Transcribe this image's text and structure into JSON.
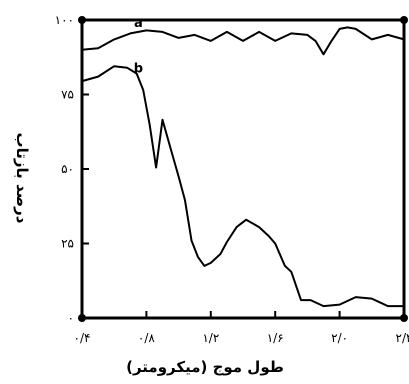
{
  "chart_data": {
    "type": "line",
    "xlabel": "طول موج (میکرومتر)",
    "ylabel": "درصد بازتاب",
    "xlim": [
      0.4,
      2.4
    ],
    "ylim": [
      0,
      100
    ],
    "grid": false,
    "x_ticks": [
      {
        "value": 0.4,
        "label": "۰/۴"
      },
      {
        "value": 0.8,
        "label": "۰/۸"
      },
      {
        "value": 1.2,
        "label": "۱/۲"
      },
      {
        "value": 1.6,
        "label": "۱/۶"
      },
      {
        "value": 2.0,
        "label": "۲/۰"
      },
      {
        "value": 2.4,
        "label": "۲/۴"
      }
    ],
    "y_ticks": [
      {
        "value": 0,
        "label": "۰"
      },
      {
        "value": 25,
        "label": "۲۵"
      },
      {
        "value": 50,
        "label": "۵۰"
      },
      {
        "value": 75,
        "label": "۷۵"
      },
      {
        "value": 100,
        "label": "۱۰۰"
      }
    ],
    "series": [
      {
        "name": "a",
        "color": "#000000",
        "x": [
          0.4,
          0.5,
          0.6,
          0.7,
          0.8,
          0.9,
          1.0,
          1.1,
          1.2,
          1.3,
          1.4,
          1.5,
          1.6,
          1.7,
          1.8,
          1.85,
          1.9,
          1.95,
          2.0,
          2.05,
          2.1,
          2.2,
          2.3,
          2.4
        ],
        "y": [
          90.0,
          90.5,
          93.5,
          95.5,
          96.5,
          96.0,
          94.0,
          95.0,
          93.0,
          96.0,
          93.0,
          96.0,
          93.0,
          95.5,
          95.0,
          93.0,
          88.5,
          93.0,
          97.0,
          97.5,
          97.0,
          93.5,
          95.0,
          93.5
        ]
      },
      {
        "name": "b",
        "color": "#000000",
        "x": [
          0.4,
          0.5,
          0.6,
          0.68,
          0.74,
          0.78,
          0.82,
          0.86,
          0.9,
          0.95,
          1.0,
          1.04,
          1.08,
          1.12,
          1.16,
          1.2,
          1.26,
          1.3,
          1.36,
          1.42,
          1.5,
          1.56,
          1.6,
          1.66,
          1.7,
          1.76,
          1.82,
          1.9,
          2.0,
          2.1,
          2.2,
          2.3,
          2.4
        ],
        "y": [
          79.5,
          81.0,
          84.5,
          84.0,
          82.0,
          76.5,
          65.0,
          50.5,
          66.5,
          57.0,
          47.5,
          39.5,
          26.0,
          20.5,
          17.5,
          18.5,
          21.5,
          25.5,
          30.5,
          33.0,
          30.5,
          27.5,
          25.0,
          17.5,
          15.5,
          6.0,
          6.0,
          4.0,
          4.5,
          7.0,
          6.5,
          4.0,
          4.0
        ]
      }
    ]
  }
}
